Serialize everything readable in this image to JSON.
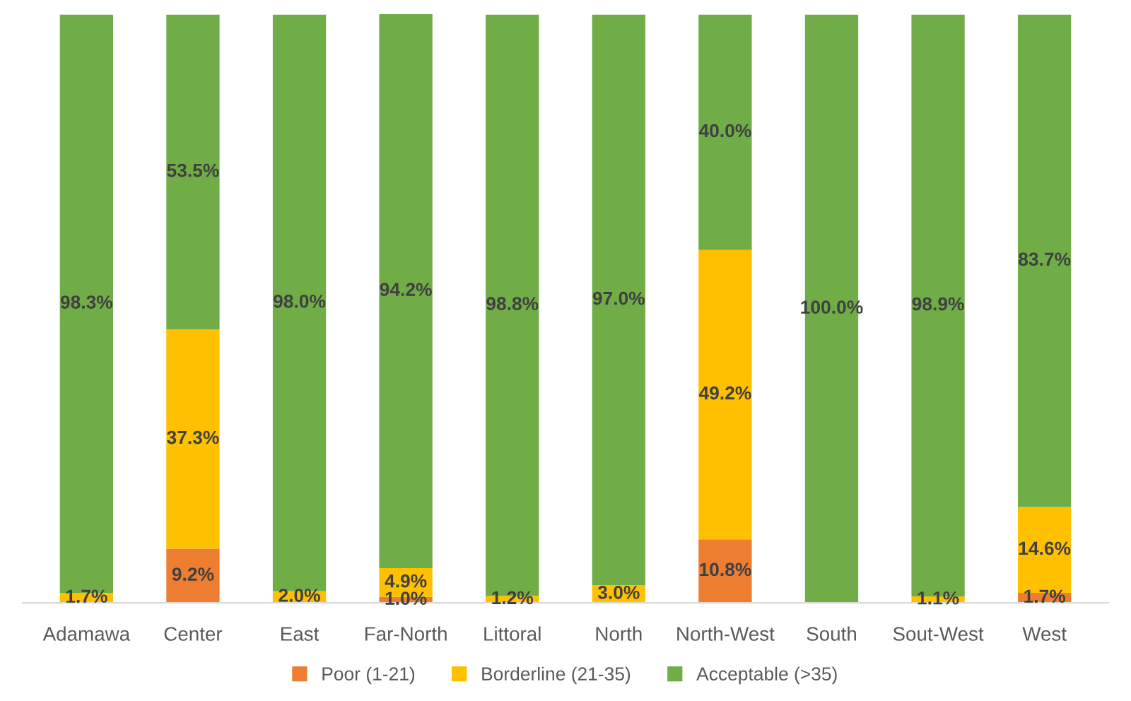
{
  "chart_data": {
    "type": "bar",
    "stacked": true,
    "categories": [
      "Adamawa",
      "Center",
      "East",
      "Far-North",
      "Littoral",
      "North",
      "North-West",
      "South",
      "Sout-West",
      "West"
    ],
    "series": [
      {
        "name": "Poor (1-21)",
        "color": "#ed7d31",
        "values": [
          0,
          9.2,
          0,
          1.0,
          0,
          0,
          10.8,
          0,
          0,
          1.7
        ],
        "value_labels": [
          null,
          "9.2%",
          null,
          "1.0%",
          null,
          null,
          "10.8%",
          null,
          null,
          "1.7%"
        ]
      },
      {
        "name": "Borderline (21-35)",
        "color": "#ffc000",
        "values": [
          1.7,
          37.3,
          2.0,
          4.9,
          1.2,
          3.0,
          49.2,
          0,
          1.1,
          14.6
        ],
        "value_labels": [
          "1.7%",
          "37.3%",
          "2.0%",
          "4.9%",
          "1.2%",
          "3.0%",
          "49.2%",
          null,
          "1.1%",
          "14.6%"
        ]
      },
      {
        "name": "Acceptable (>35)",
        "color": "#70ad47",
        "values": [
          98.3,
          53.5,
          98.0,
          94.2,
          98.8,
          97.0,
          40.0,
          100.0,
          98.9,
          83.7
        ],
        "value_labels": [
          "98.3%",
          "53.5%",
          "98.0%",
          "94.2%",
          "98.8%",
          "97.0%",
          "40.0%",
          "100.0%",
          "98.9%",
          "83.7%"
        ]
      }
    ],
    "legend": "bottom"
  }
}
